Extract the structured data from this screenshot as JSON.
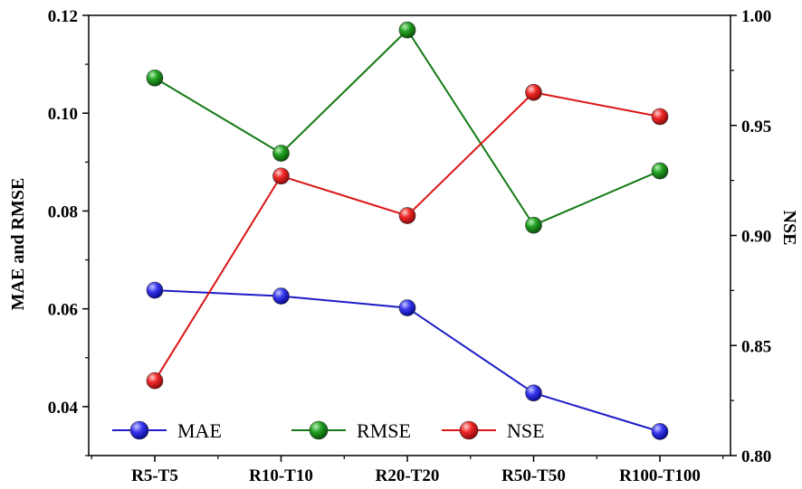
{
  "chart_data": {
    "type": "line",
    "categories": [
      "R5-T5",
      "R10-T10",
      "R20-T20",
      "R50-T50",
      "R100-T100"
    ],
    "ylabel_left": "MAE and RMSE",
    "ylabel_right": "NSE",
    "xlabel": "",
    "ylim_left": [
      0.03,
      0.12
    ],
    "ylim_right": [
      0.8,
      1.0
    ],
    "yticks_left": [
      "0.04",
      "0.06",
      "0.08",
      "0.10",
      "0.12"
    ],
    "yticks_right": [
      "0.80",
      "0.85",
      "0.90",
      "0.95",
      "1.00"
    ],
    "grid": false,
    "legend_position": "bottom",
    "series": [
      {
        "name": "MAE",
        "axis": "left",
        "color": "#1c1cc8",
        "marker_color": "#2a2ae6",
        "values": [
          0.0638,
          0.0626,
          0.0602,
          0.0428,
          0.0349
        ]
      },
      {
        "name": "RMSE",
        "axis": "left",
        "color": "#137a13",
        "marker_color": "#1f9a1f",
        "values": [
          0.1072,
          0.0918,
          0.117,
          0.0771,
          0.0882
        ]
      },
      {
        "name": "NSE",
        "axis": "right",
        "color": "#dc1414",
        "marker_color": "#ee2222",
        "values": [
          0.834,
          0.927,
          0.909,
          0.965,
          0.954
        ]
      }
    ]
  }
}
